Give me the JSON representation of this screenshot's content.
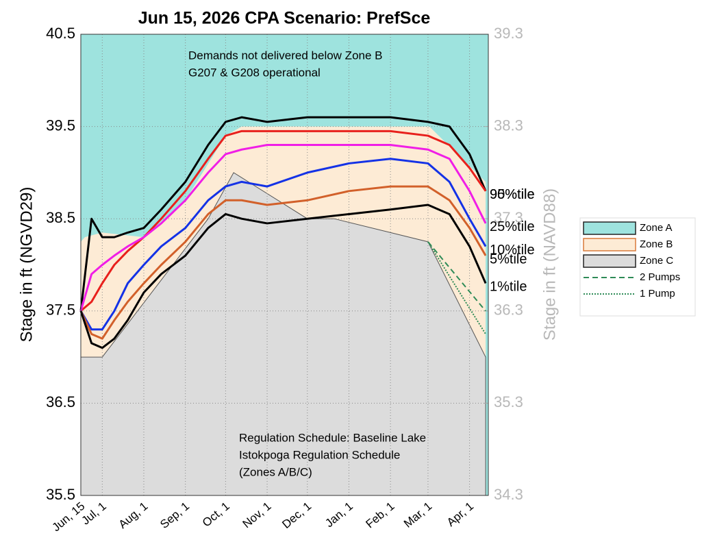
{
  "chart_data": {
    "type": "line",
    "title": "Jun 15, 2026  CPA Scenario: PrefSce",
    "y_label": "Stage in ft (NGVD29)",
    "y2_label": "Stage in ft (NAVD88)",
    "annotations": [
      "Demands not delivered below Zone B",
      "G207 & G208 operational",
      "Regulation Schedule: Baseline Lake",
      "Istokpoga Regulation Schedule",
      "(Zones A/B/C)"
    ],
    "xlim": [
      0,
      304
    ],
    "xticks": [
      {
        "value": 0,
        "label": "Jun, 15"
      },
      {
        "value": 16,
        "label": "Jul, 1"
      },
      {
        "value": 47,
        "label": "Aug, 1"
      },
      {
        "value": 78,
        "label": "Sep, 1"
      },
      {
        "value": 108,
        "label": "Oct, 1"
      },
      {
        "value": 139,
        "label": "Nov, 1"
      },
      {
        "value": 169,
        "label": "Dec, 1"
      },
      {
        "value": 200,
        "label": "Jan, 1"
      },
      {
        "value": 231,
        "label": "Feb, 1"
      },
      {
        "value": 259,
        "label": "Mar, 1"
      },
      {
        "value": 290,
        "label": "Apr, 1"
      }
    ],
    "ylim": [
      35.5,
      40.5
    ],
    "yticks": [
      35.5,
      36.5,
      37.5,
      38.5,
      39.5,
      40.5
    ],
    "y2lim": [
      34.3,
      39.3
    ],
    "y2ticks": [
      34.3,
      35.3,
      36.3,
      37.3,
      38.3,
      39.3
    ],
    "grid": true,
    "zones": [
      {
        "name": "Zone A",
        "color": "#9ee3de"
      },
      {
        "name": "Zone B",
        "color": "#fdebd5",
        "x": [
          0,
          3,
          16,
          47,
          78,
          108,
          120,
          260,
          302
        ],
        "values": [
          38.25,
          38.3,
          38.35,
          38.3,
          38.7,
          39.4,
          39.5,
          39.5,
          38.9
        ]
      },
      {
        "name": "Zone C",
        "color": "#dcdcdc",
        "x": [
          0,
          16,
          95,
          114,
          169,
          189,
          259,
          302
        ],
        "values": [
          37,
          37,
          38.5,
          39.0,
          38.5,
          38.5,
          38.25,
          37.0
        ]
      }
    ],
    "x": [
      0,
      8,
      16,
      25,
      35,
      47,
      60,
      78,
      95,
      108,
      120,
      139,
      169,
      200,
      231,
      259,
      275,
      290,
      302
    ],
    "series": [
      {
        "name": "95%tile",
        "color": "#000000",
        "values": [
          37.5,
          38.5,
          38.3,
          38.3,
          38.35,
          38.4,
          38.6,
          38.9,
          39.3,
          39.55,
          39.6,
          39.55,
          39.6,
          39.6,
          39.6,
          39.55,
          39.5,
          39.2,
          38.8
        ]
      },
      {
        "name": "90%tile",
        "color": "#e8201c",
        "values": [
          37.5,
          37.6,
          37.8,
          38.0,
          38.15,
          38.3,
          38.5,
          38.8,
          39.15,
          39.4,
          39.45,
          39.45,
          39.45,
          39.45,
          39.45,
          39.4,
          39.3,
          39.05,
          38.8
        ]
      },
      {
        "name": "25%tile",
        "color": "#f01ee6",
        "values": [
          37.5,
          37.9,
          38.0,
          38.1,
          38.2,
          38.3,
          38.45,
          38.7,
          39.0,
          39.2,
          39.25,
          39.3,
          39.3,
          39.3,
          39.3,
          39.25,
          39.15,
          38.8,
          38.45
        ]
      },
      {
        "name": "10%tile",
        "color": "#1432e6",
        "values": [
          37.5,
          37.3,
          37.3,
          37.5,
          37.8,
          38.0,
          38.2,
          38.4,
          38.7,
          38.85,
          38.9,
          38.85,
          39.0,
          39.1,
          39.15,
          39.1,
          38.9,
          38.5,
          38.2
        ]
      },
      {
        "name": "5%tile",
        "color": "#d2602a",
        "values": [
          37.5,
          37.25,
          37.2,
          37.4,
          37.6,
          37.8,
          38.0,
          38.25,
          38.55,
          38.7,
          38.7,
          38.65,
          38.7,
          38.8,
          38.85,
          38.85,
          38.7,
          38.4,
          38.1
        ]
      },
      {
        "name": "1%tile",
        "color": "#000000",
        "values": [
          37.5,
          37.15,
          37.1,
          37.2,
          37.4,
          37.7,
          37.9,
          38.1,
          38.4,
          38.55,
          38.5,
          38.45,
          38.5,
          38.55,
          38.6,
          38.65,
          38.55,
          38.2,
          37.8
        ]
      }
    ],
    "pumps": [
      {
        "name": "2 Pumps",
        "color": "#2e8b57",
        "dash": "8,5",
        "x": [
          259,
          302
        ],
        "values": [
          38.25,
          37.5
        ]
      },
      {
        "name": "1 Pump",
        "color": "#2e8b57",
        "dash": "2,2",
        "x": [
          259,
          302
        ],
        "values": [
          38.25,
          37.25
        ]
      }
    ]
  }
}
